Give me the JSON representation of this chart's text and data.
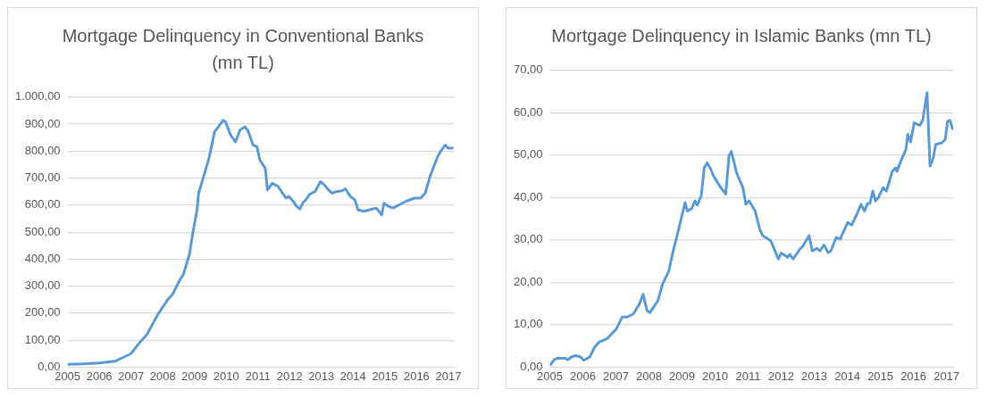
{
  "chart_data": [
    {
      "type": "line",
      "title": "Mortgage Delinquency in Conventional Banks (mn TL)",
      "grid": "y",
      "legend": false,
      "xlim": [
        2005,
        2017.2
      ],
      "xticks": [
        2005,
        2006,
        2007,
        2008,
        2009,
        2010,
        2011,
        2012,
        2013,
        2014,
        2015,
        2016,
        2017
      ],
      "ylim": [
        0,
        1000
      ],
      "yticks": [
        {
          "value": 0,
          "label": "0,00"
        },
        {
          "value": 100,
          "label": "100,00"
        },
        {
          "value": 200,
          "label": "200,00"
        },
        {
          "value": 300,
          "label": "300,00"
        },
        {
          "value": 400,
          "label": "400,00"
        },
        {
          "value": 500,
          "label": "500,00"
        },
        {
          "value": 600,
          "label": "600,00"
        },
        {
          "value": 700,
          "label": "700,00"
        },
        {
          "value": 800,
          "label": "800,00"
        },
        {
          "value": 900,
          "label": "900,00"
        },
        {
          "value": 1000,
          "label": "1.000,00"
        }
      ],
      "series": [
        {
          "color": "#5b9bd5",
          "x": [
            2005,
            2005.5,
            2006,
            2006.5,
            2007,
            2007.3,
            2007.5,
            2007.85,
            2008.17,
            2008.31,
            2008.55,
            2008.65,
            2008.84,
            2008.94,
            2009.08,
            2009.13,
            2009.32,
            2009.47,
            2009.63,
            2009.9,
            2009.98,
            2010.14,
            2010.29,
            2010.43,
            2010.58,
            2010.68,
            2010.85,
            2010.97,
            2011.06,
            2011.23,
            2011.3,
            2011.45,
            2011.64,
            2011.74,
            2011.88,
            2011.98,
            2012.12,
            2012.22,
            2012.32,
            2012.41,
            2012.51,
            2012.63,
            2012.8,
            2012.97,
            2013.09,
            2013.18,
            2013.33,
            2013.47,
            2013.62,
            2013.76,
            2013.91,
            2014.05,
            2014.15,
            2014.34,
            2014.53,
            2014.73,
            2014.9,
            2014.97,
            2015.12,
            2015.26,
            2015.45,
            2015.7,
            2015.94,
            2016.13,
            2016.27,
            2016.42,
            2016.66,
            2016.76,
            2016.9,
            2017,
            2017.16
          ],
          "values": [
            10,
            12,
            15,
            22,
            50,
            95,
            120,
            196,
            252,
            270,
            325,
            343,
            417,
            491,
            583,
            644,
            718,
            779,
            871,
            914,
            908,
            859,
            834,
            877,
            890,
            877,
            822,
            816,
            767,
            736,
            656,
            681,
            669,
            650,
            626,
            632,
            613,
            595,
            586,
            607,
            620,
            640,
            650,
            687,
            675,
            662,
            644,
            650,
            652,
            660,
            632,
            620,
            583,
            577,
            583,
            589,
            564,
            607,
            595,
            589,
            601,
            616,
            626,
            626,
            644,
            705,
            779,
            800,
            822,
            810,
            812
          ]
        }
      ]
    },
    {
      "type": "line",
      "title": "Mortgage Delinquency in Islamic Banks (mn TL)",
      "grid": "y",
      "legend": false,
      "xlim": [
        2005,
        2017.2
      ],
      "xticks": [
        2005,
        2006,
        2007,
        2008,
        2009,
        2010,
        2011,
        2012,
        2013,
        2014,
        2015,
        2016,
        2017
      ],
      "ylim": [
        0,
        70
      ],
      "yticks": [
        {
          "value": 0,
          "label": "0,00"
        },
        {
          "value": 10,
          "label": "10,00"
        },
        {
          "value": 20,
          "label": "20,00"
        },
        {
          "value": 30,
          "label": "30,00"
        },
        {
          "value": 40,
          "label": "40,00"
        },
        {
          "value": 50,
          "label": "50,00"
        },
        {
          "value": 60,
          "label": "60,00"
        },
        {
          "value": 70,
          "label": "70,00"
        }
      ],
      "series": [
        {
          "color": "#5b9bd5",
          "x": [
            2005,
            2005.14,
            2005.23,
            2005.47,
            2005.54,
            2005.65,
            2005.79,
            2005.93,
            2006.03,
            2006.21,
            2006.35,
            2006.49,
            2006.73,
            2007.01,
            2007.19,
            2007.33,
            2007.52,
            2007.71,
            2007.82,
            2007.94,
            2008.03,
            2008.27,
            2008.41,
            2008.6,
            2008.73,
            2008.87,
            2009.09,
            2009.16,
            2009.29,
            2009.39,
            2009.46,
            2009.58,
            2009.67,
            2009.76,
            2009.87,
            2009.95,
            2010.14,
            2010.32,
            2010.42,
            2010.49,
            2010.65,
            2010.84,
            2010.93,
            2011.03,
            2011.21,
            2011.35,
            2011.44,
            2011.68,
            2011.77,
            2011.91,
            2012,
            2012.19,
            2012.26,
            2012.36,
            2012.56,
            2012.66,
            2012.84,
            2012.94,
            2013.08,
            2013.17,
            2013.29,
            2013.42,
            2013.5,
            2013.66,
            2013.78,
            2014.01,
            2014.13,
            2014.29,
            2014.41,
            2014.52,
            2014.61,
            2014.68,
            2014.77,
            2014.85,
            2014.94,
            2015.08,
            2015.18,
            2015.36,
            2015.46,
            2015.5,
            2015.64,
            2015.77,
            2015.83,
            2015.91,
            2016.02,
            2016.19,
            2016.28,
            2016.41,
            2016.5,
            2016.6,
            2016.67,
            2016.86,
            2016.96,
            2017.03,
            2017.1,
            2017.19
          ],
          "values": [
            0.4,
            1.8,
            2.1,
            2.1,
            1.7,
            2.4,
            2.7,
            2.4,
            1.6,
            2.4,
            4.7,
            5.9,
            6.7,
            9,
            11.8,
            11.8,
            12.5,
            14.9,
            17.2,
            13.3,
            12.9,
            15.7,
            19.6,
            22.7,
            27.4,
            31.7,
            38.8,
            36.8,
            37.4,
            39.2,
            38.2,
            40.4,
            47,
            48.2,
            46.6,
            45.1,
            42.7,
            40.8,
            49.8,
            50.9,
            45.8,
            42.3,
            38.4,
            39.2,
            36.8,
            32.5,
            31,
            29.8,
            28.2,
            25.5,
            26.9,
            25.9,
            26.6,
            25.5,
            27.8,
            28.6,
            31,
            27.4,
            28,
            27.4,
            28.8,
            27,
            27.4,
            30.6,
            30.2,
            34.1,
            33.5,
            36.1,
            38.4,
            36.8,
            38.6,
            38.6,
            41.5,
            39.2,
            40,
            42.3,
            41.5,
            46.2,
            47,
            46.2,
            49,
            51.3,
            54.9,
            53.1,
            57.6,
            57,
            58.2,
            64.7,
            47.4,
            49.4,
            52.5,
            52.9,
            53.7,
            58,
            58.2,
            56
          ]
        }
      ]
    }
  ]
}
